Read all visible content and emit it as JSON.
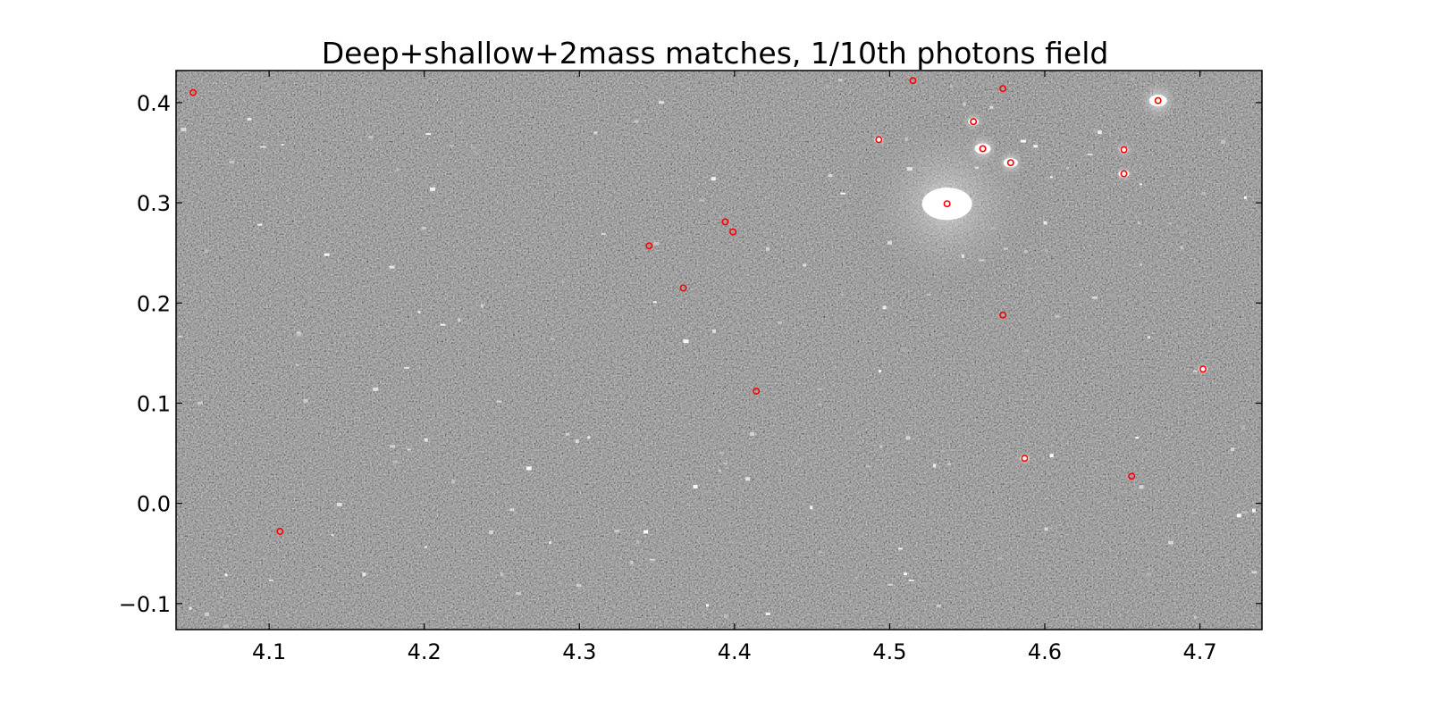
{
  "chart_data": {
    "type": "scatter",
    "title": "Deep+shallow+2mass matches, 1/10th photons field",
    "xlabel": "",
    "ylabel": "",
    "xlim": [
      4.04,
      4.74
    ],
    "ylim": [
      -0.126,
      0.432
    ],
    "xticks": [
      4.1,
      4.2,
      4.3,
      4.4,
      4.5,
      4.6,
      4.7
    ],
    "xtick_labels": [
      "4.1",
      "4.2",
      "4.3",
      "4.4",
      "4.5",
      "4.6",
      "4.7"
    ],
    "yticks": [
      -0.1,
      0.0,
      0.1,
      0.2,
      0.3,
      0.4
    ],
    "ytick_labels": [
      "−0.1",
      "0.0",
      "0.1",
      "0.2",
      "0.3",
      "0.4"
    ],
    "grid": false,
    "background": "grayscale star field image",
    "marker_color": "#ff0000",
    "series": [
      {
        "marker": "open-circle",
        "x": [
          4.051,
          4.107,
          4.345,
          4.367,
          4.394,
          4.399,
          4.414,
          4.493,
          4.515,
          4.537,
          4.554,
          4.56,
          4.573,
          4.573,
          4.578,
          4.587,
          4.651,
          4.651,
          4.656,
          4.673,
          4.702
        ],
        "y": [
          0.41,
          -0.028,
          0.257,
          0.215,
          0.281,
          0.271,
          0.112,
          0.363,
          0.422,
          0.299,
          0.381,
          0.354,
          0.414,
          0.188,
          0.34,
          0.045,
          0.353,
          0.329,
          0.027,
          0.402,
          0.134
        ]
      }
    ],
    "bright_sources": [
      {
        "x": 4.537,
        "y": 0.299,
        "size": 28,
        "halo": 110
      },
      {
        "x": 4.673,
        "y": 0.402,
        "size": 10,
        "halo": 22
      },
      {
        "x": 4.56,
        "y": 0.354,
        "size": 9,
        "halo": 18
      },
      {
        "x": 4.578,
        "y": 0.34,
        "size": 8,
        "halo": 16
      },
      {
        "x": 4.554,
        "y": 0.381,
        "size": 6,
        "halo": 12
      },
      {
        "x": 4.651,
        "y": 0.329,
        "size": 6,
        "halo": 10
      },
      {
        "x": 4.651,
        "y": 0.353,
        "size": 5,
        "halo": 10
      },
      {
        "x": 4.493,
        "y": 0.363,
        "size": 5,
        "halo": 8
      },
      {
        "x": 4.587,
        "y": 0.045,
        "size": 5,
        "halo": 8
      },
      {
        "x": 4.702,
        "y": 0.134,
        "size": 5,
        "halo": 8
      }
    ]
  }
}
